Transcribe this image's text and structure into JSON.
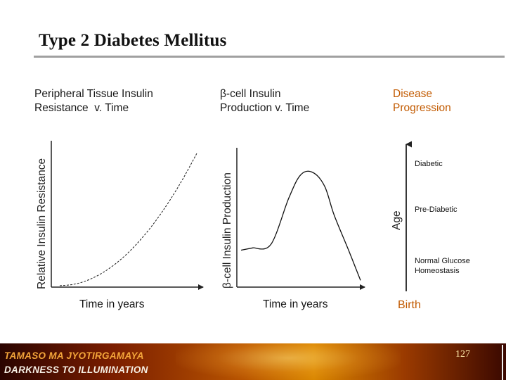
{
  "slide": {
    "title": "Type 2 Diabetes Mellitus",
    "footer": {
      "line1": "TAMASO MA JYOTIRGAMAYA",
      "line2": "DARKNESS TO ILLUMINATION"
    },
    "page_number": "127"
  },
  "colors": {
    "accent": "#c25a00",
    "title": "#111111",
    "rule": "#a0a0a0"
  },
  "chart_data": [
    {
      "type": "line",
      "title": "Peripheral Tissue Insulin\nResistance  v. Time",
      "xlabel": "Time in years",
      "ylabel": "Relative Insulin Resistance",
      "x": [
        0,
        1,
        2,
        3,
        4,
        5,
        6,
        7,
        8,
        9,
        10
      ],
      "y": [
        0.0,
        0.01,
        0.04,
        0.09,
        0.16,
        0.25,
        0.36,
        0.49,
        0.64,
        0.81,
        1.0
      ],
      "xlim": [
        0,
        10
      ],
      "ylim": [
        0,
        1
      ],
      "grid": false
    },
    {
      "type": "line",
      "title": "β-cell Insulin\nProduction v. Time",
      "xlabel": "Time in years",
      "ylabel": "β-cell Insulin Production",
      "x": [
        0,
        1.0,
        2.5,
        4.0,
        5.0,
        6.0,
        7.0,
        7.8,
        9.0,
        10.0
      ],
      "y": [
        0.3,
        0.32,
        0.35,
        0.75,
        0.95,
        0.97,
        0.85,
        0.6,
        0.3,
        0.04
      ],
      "xlim": [
        0,
        10
      ],
      "ylim": [
        0,
        1
      ],
      "grid": false
    },
    {
      "type": "diagram",
      "title": "Disease\nProgression",
      "axis_label": "Age",
      "origin_label": "Birth",
      "stages": [
        "Diabetic",
        "Pre-Diabetic",
        "Normal Glucose\nHomeostasis"
      ]
    }
  ]
}
